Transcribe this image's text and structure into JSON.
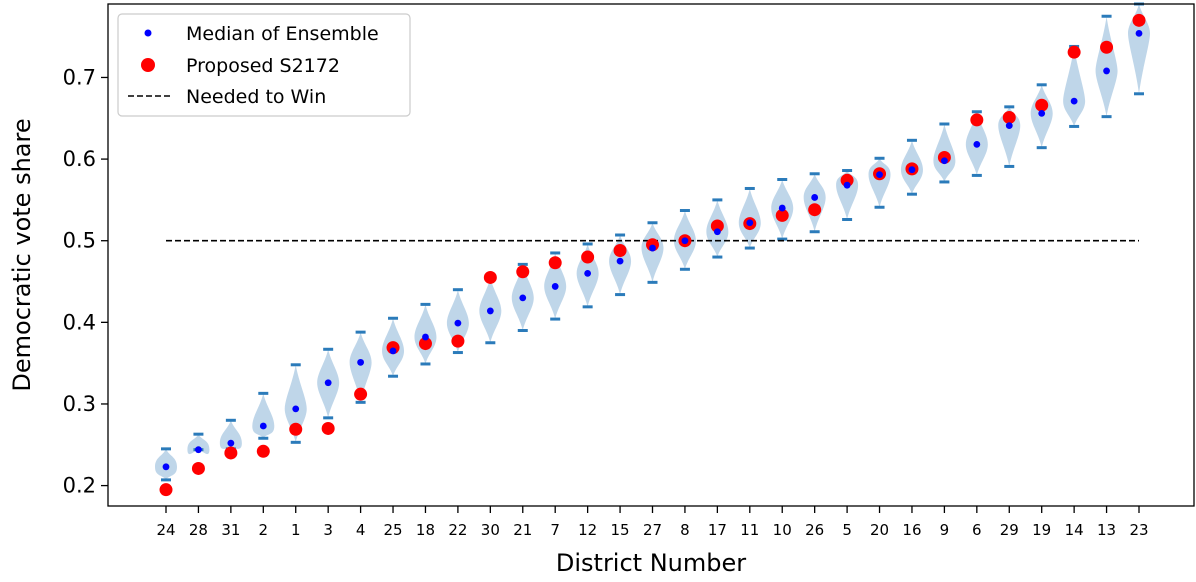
{
  "chart_data": {
    "type": "scatter",
    "xlabel": "District Number",
    "ylabel": "Democratic vote share",
    "ylim": [
      0.175,
      0.79
    ],
    "yticks": [
      0.2,
      0.3,
      0.4,
      0.5,
      0.6,
      0.7
    ],
    "categories": [
      "24",
      "28",
      "31",
      "2",
      "1",
      "3",
      "4",
      "25",
      "18",
      "22",
      "30",
      "21",
      "7",
      "12",
      "15",
      "27",
      "8",
      "17",
      "11",
      "10",
      "26",
      "5",
      "20",
      "16",
      "9",
      "6",
      "29",
      "19",
      "14",
      "13",
      "23"
    ],
    "legend_position": "top-left",
    "colors": {
      "median": "#0000ff",
      "proposed": "#ff0000",
      "violin": "#bcd4e8",
      "bars": "#2b7bba",
      "threshold": "#000000"
    },
    "series": [
      {
        "name": "Median of Ensemble",
        "marker": "small-blue-dot",
        "values": [
          0.223,
          0.244,
          0.252,
          0.273,
          0.294,
          0.326,
          0.351,
          0.365,
          0.382,
          0.399,
          0.414,
          0.43,
          0.444,
          0.46,
          0.475,
          0.491,
          0.5,
          0.511,
          0.522,
          0.54,
          0.553,
          0.568,
          0.581,
          0.587,
          0.598,
          0.618,
          0.641,
          0.656,
          0.671,
          0.708,
          0.754
        ]
      },
      {
        "name": "Proposed S2172",
        "marker": "large-red-dot",
        "values": [
          0.195,
          0.221,
          0.24,
          0.242,
          0.269,
          0.27,
          0.312,
          0.369,
          0.374,
          0.377,
          0.455,
          0.462,
          0.473,
          0.48,
          0.488,
          0.495,
          0.5,
          0.518,
          0.521,
          0.531,
          0.538,
          0.574,
          0.582,
          0.588,
          0.602,
          0.648,
          0.651,
          0.666,
          0.731,
          0.737,
          0.77
        ]
      },
      {
        "name": "Needed to Win",
        "style": "dashed",
        "value": 0.5
      }
    ],
    "ensemble_range": {
      "min": [
        0.207,
        0.244,
        0.245,
        0.258,
        0.253,
        0.283,
        0.302,
        0.334,
        0.349,
        0.363,
        0.375,
        0.39,
        0.404,
        0.419,
        0.434,
        0.449,
        0.465,
        0.48,
        0.491,
        0.502,
        0.511,
        0.526,
        0.541,
        0.557,
        0.572,
        0.58,
        0.591,
        0.614,
        0.64,
        0.652,
        0.68
      ],
      "max": [
        0.245,
        0.263,
        0.28,
        0.313,
        0.348,
        0.367,
        0.388,
        0.405,
        0.422,
        0.44,
        0.455,
        0.471,
        0.485,
        0.496,
        0.507,
        0.522,
        0.537,
        0.55,
        0.564,
        0.575,
        0.582,
        0.586,
        0.601,
        0.623,
        0.643,
        0.658,
        0.664,
        0.691,
        0.738,
        0.775,
        0.79
      ]
    }
  }
}
